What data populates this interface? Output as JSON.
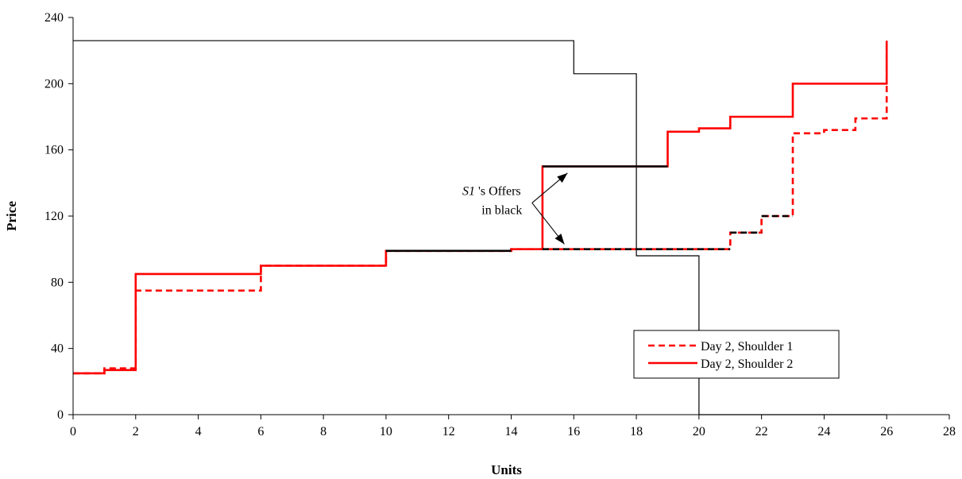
{
  "chart_data": {
    "type": "line",
    "title": "",
    "xlabel": "Units",
    "ylabel": "Price",
    "xlim": [
      0,
      28
    ],
    "ylim": [
      0,
      240
    ],
    "xticks": [
      0,
      2,
      4,
      6,
      8,
      10,
      12,
      14,
      16,
      18,
      20,
      22,
      24,
      26,
      28
    ],
    "yticks": [
      0,
      40,
      80,
      120,
      160,
      200,
      240
    ],
    "grid": false,
    "legend_position": "bottom-right",
    "demand_curve": {
      "style": "thin-solid",
      "color": "#000000",
      "points": [
        [
          0,
          226
        ],
        [
          16,
          226
        ],
        [
          16,
          206
        ],
        [
          18,
          206
        ],
        [
          18,
          96
        ],
        [
          20,
          96
        ],
        [
          20,
          0
        ],
        [
          26,
          0
        ]
      ]
    },
    "series": [
      {
        "name": "Day 2, Shoulder 1",
        "style": "dashed",
        "color": "#ff0000",
        "points": [
          [
            0,
            25
          ],
          [
            1,
            25
          ],
          [
            1,
            28
          ],
          [
            2,
            28
          ],
          [
            2,
            75
          ],
          [
            6,
            75
          ],
          [
            6,
            90
          ],
          [
            10,
            90
          ],
          [
            10,
            99
          ],
          [
            14,
            99
          ],
          [
            14,
            100
          ],
          [
            21,
            100
          ],
          [
            21,
            110
          ],
          [
            22,
            110
          ],
          [
            22,
            120
          ],
          [
            23,
            120
          ],
          [
            23,
            170
          ],
          [
            24,
            170
          ],
          [
            24,
            172
          ],
          [
            25,
            172
          ],
          [
            25,
            179
          ],
          [
            26,
            179
          ],
          [
            26,
            226
          ]
        ]
      },
      {
        "name": "Day 2, Shoulder 2",
        "style": "solid",
        "color": "#ff0000",
        "points": [
          [
            0,
            25
          ],
          [
            1,
            25
          ],
          [
            1,
            27
          ],
          [
            2,
            27
          ],
          [
            2,
            85
          ],
          [
            6,
            85
          ],
          [
            6,
            90
          ],
          [
            10,
            90
          ],
          [
            10,
            99
          ],
          [
            14,
            99
          ],
          [
            14,
            100
          ],
          [
            15,
            100
          ],
          [
            15,
            150
          ],
          [
            19,
            150
          ],
          [
            19,
            171
          ],
          [
            20,
            171
          ],
          [
            20,
            173
          ],
          [
            21,
            173
          ],
          [
            21,
            180
          ],
          [
            23,
            180
          ],
          [
            23,
            200
          ],
          [
            26,
            200
          ],
          [
            26,
            226
          ]
        ]
      }
    ],
    "s1_offers_overlay": {
      "color": "#000000",
      "solid_segments": [
        [
          [
            10,
            99
          ],
          [
            14,
            99
          ]
        ],
        [
          [
            15,
            150
          ],
          [
            19,
            150
          ]
        ]
      ],
      "dashed_segments": [
        [
          [
            10,
            99
          ],
          [
            14,
            99
          ]
        ],
        [
          [
            15,
            100
          ],
          [
            21,
            100
          ]
        ],
        [
          [
            21,
            110
          ],
          [
            22,
            110
          ]
        ],
        [
          [
            22,
            120
          ],
          [
            23,
            120
          ]
        ]
      ]
    },
    "annotation": {
      "text_italic": "S1",
      "text_rest": " 's Offers",
      "text_line2": "in black",
      "anchor": [
        13.5,
        127
      ],
      "arrow_targets": [
        [
          15.8,
          146
        ],
        [
          15.7,
          103
        ]
      ]
    },
    "legend_colors": {
      "border": "#000000",
      "background": "#ffffff"
    }
  }
}
